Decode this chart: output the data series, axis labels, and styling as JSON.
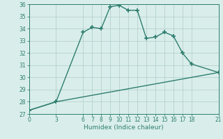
{
  "xlabel": "Humidex (Indice chaleur)",
  "line1_x": [
    0,
    3,
    6,
    7,
    8,
    9,
    10,
    11,
    12,
    13,
    14,
    15,
    16,
    17,
    18,
    21
  ],
  "line1_y": [
    27.3,
    28.0,
    33.7,
    34.1,
    34.0,
    35.8,
    35.9,
    35.5,
    35.5,
    33.2,
    33.3,
    33.7,
    33.4,
    32.0,
    31.1,
    30.4
  ],
  "line2_x": [
    0,
    3,
    21
  ],
  "line2_y": [
    27.3,
    28.0,
    30.4
  ],
  "color": "#2e7d6e",
  "bg_color": "#d9eeeb",
  "grid_color": "#b0ccc8",
  "xlim": [
    0,
    21
  ],
  "ylim": [
    27,
    36
  ],
  "yticks": [
    27,
    28,
    29,
    30,
    31,
    32,
    33,
    34,
    35,
    36
  ],
  "xticks": [
    0,
    3,
    6,
    7,
    8,
    9,
    10,
    11,
    12,
    13,
    14,
    15,
    16,
    17,
    18,
    21
  ],
  "marker": "+",
  "markersize": 5,
  "linewidth": 1.0,
  "tick_fontsize": 5.5,
  "xlabel_fontsize": 6.5
}
